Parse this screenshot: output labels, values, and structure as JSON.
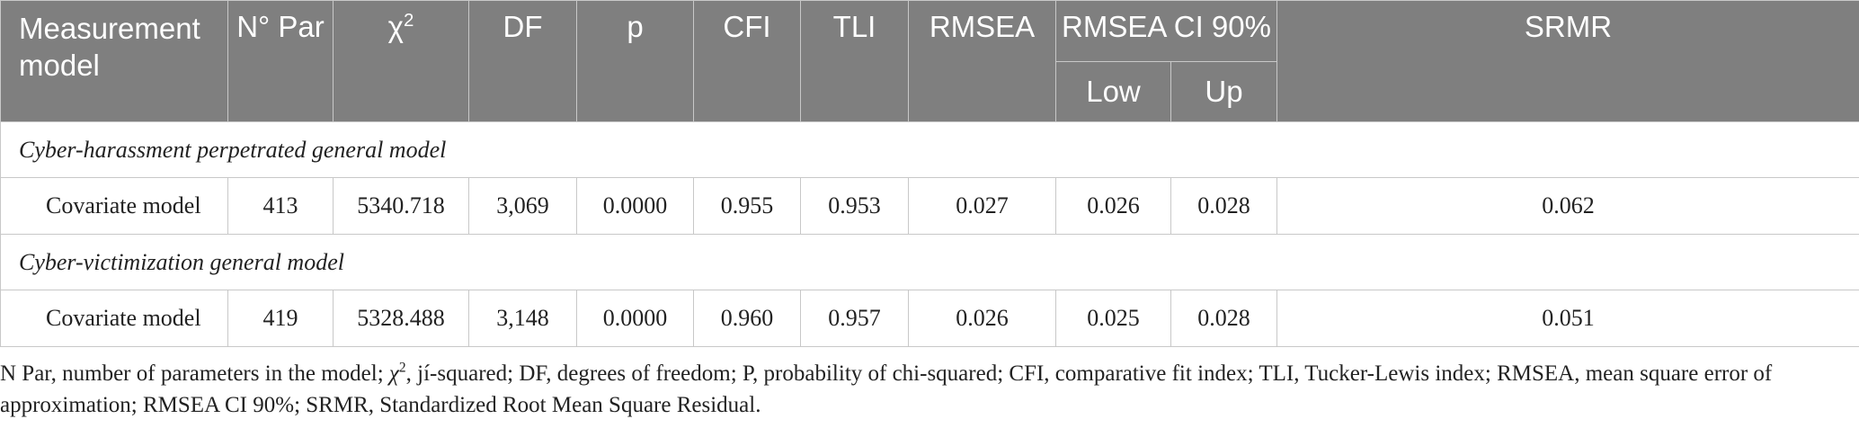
{
  "header": {
    "measurement_model": "Measurement model",
    "n_par": "N° Par",
    "chi_symbol": "χ",
    "chi_exp": "2",
    "df": "DF",
    "p": "p",
    "cfi": "CFI",
    "tli": "TLI",
    "rmsea": "RMSEA",
    "rmsea_ci": "RMSEA CI 90%",
    "low": "Low",
    "up": "Up",
    "srmr": "SRMR"
  },
  "sections": [
    {
      "title": "Cyber-harassment perpetrated general model",
      "row": {
        "model": "Covariate model",
        "n_par": "413",
        "chi2": "5340.718",
        "df": "3,069",
        "p": "0.0000",
        "cfi": "0.955",
        "tli": "0.953",
        "rmsea": "0.027",
        "low": "0.026",
        "up": "0.028",
        "srmr": "0.062"
      }
    },
    {
      "title": "Cyber-victimization general model",
      "row": {
        "model": "Covariate model",
        "n_par": "419",
        "chi2": "5328.488",
        "df": "3,148",
        "p": "0.0000",
        "cfi": "0.960",
        "tli": "0.957",
        "rmsea": "0.026",
        "low": "0.025",
        "up": "0.028",
        "srmr": "0.051"
      }
    }
  ],
  "footnote": {
    "part1": "N Par, number of parameters in the model; ",
    "chi_symbol": "χ",
    "chi_exp": "2",
    "part2": ", jí-squared; DF, degrees of freedom; P, probability of chi-squared; CFI, comparative fit index; TLI, Tucker-Lewis index; RMSEA, mean square error of approximation; RMSEA CI 90%; SRMR, Standardized Root Mean Square Residual."
  }
}
